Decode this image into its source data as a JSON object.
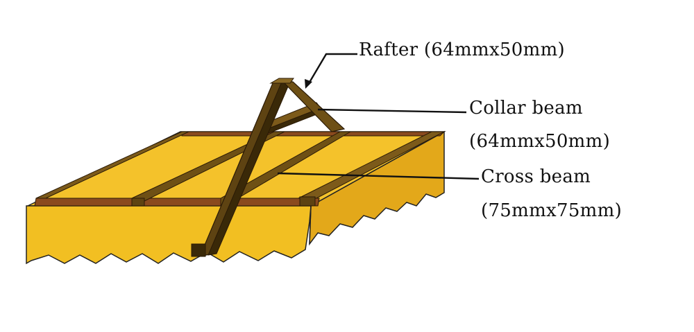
{
  "labels": {
    "rafter": "Rafter (64mmx50mm)",
    "collar_beam_line1": "Collar beam",
    "collar_beam_line2": "(64mmx50mm)",
    "cross_beam_line1": "Cross beam",
    "cross_beam_line2": "(75mmx75mm)"
  },
  "colors": {
    "base_top": "#F4C22B",
    "base_front": "#F2BF22",
    "base_side": "#E3A81A",
    "timber_light": "#7C5A1A",
    "timber_mid": "#5E4312",
    "timber_dark": "#3A2908",
    "timber_plate": "#8A4A1E",
    "leader_line": "#111111"
  }
}
